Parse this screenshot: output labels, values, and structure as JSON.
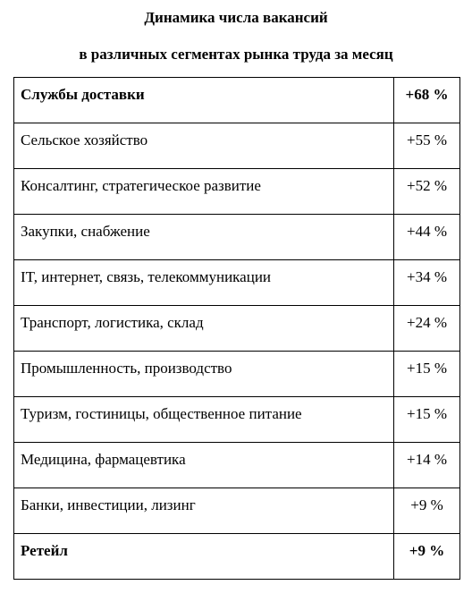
{
  "title": {
    "line1": "Динамика числа вакансий",
    "line2": "в различных сегментах рынка труда за месяц"
  },
  "rows": [
    {
      "segment": "Службы доставки",
      "change": "+68 %",
      "bold": true
    },
    {
      "segment": "Сельское хозяйство",
      "change": "+55 %",
      "bold": false
    },
    {
      "segment": "Консалтинг, стратегическое развитие",
      "change": "+52 %",
      "bold": false
    },
    {
      "segment": "Закупки, снабжение",
      "change": "+44 %",
      "bold": false
    },
    {
      "segment": "IT, интернет, связь,  телекоммуникации",
      "change": "+34 %",
      "bold": false
    },
    {
      "segment": "Транспорт, логистика, склад",
      "change": "+24 %",
      "bold": false
    },
    {
      "segment": "Промышленность, производство",
      "change": "+15 %",
      "bold": false
    },
    {
      "segment": "Туризм, гостиницы, общественное питание",
      "change": "+15 %",
      "bold": false
    },
    {
      "segment": "Медицина, фармацевтика",
      "change": "+14 %",
      "bold": false
    },
    {
      "segment": "Банки, инвестиции, лизинг",
      "change": "+9 %",
      "bold": false
    },
    {
      "segment": "Ретейл",
      "change": "+9 %",
      "bold": true
    }
  ]
}
